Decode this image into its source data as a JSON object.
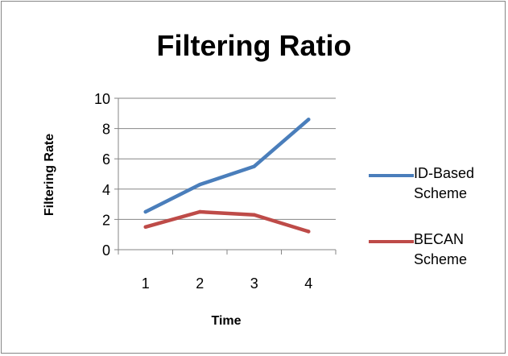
{
  "chart_data": {
    "type": "line",
    "title": "Filtering Ratio",
    "xlabel": "Time",
    "ylabel": "Filtering Rate",
    "categories": [
      "1",
      "2",
      "3",
      "4"
    ],
    "ylim": [
      0,
      10
    ],
    "yticks": [
      "0",
      "2",
      "4",
      "6",
      "8",
      "10"
    ],
    "grid": true,
    "legend_position": "right",
    "series": [
      {
        "name": "ID-Based Scheme",
        "color": "#4a7ebb",
        "values": [
          2.5,
          4.3,
          5.5,
          8.6
        ]
      },
      {
        "name": "BECAN Scheme",
        "color": "#be4b48",
        "values": [
          1.5,
          2.5,
          2.3,
          1.2
        ]
      }
    ]
  }
}
